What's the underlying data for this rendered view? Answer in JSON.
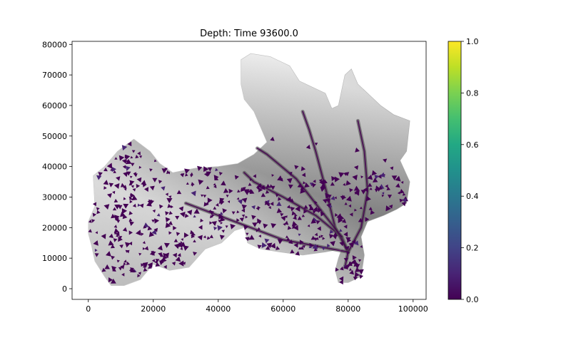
{
  "chart_data": {
    "type": "heatmap",
    "title": "Depth: Time 93600.0",
    "xlabel": "",
    "ylabel": "",
    "xlim": [
      -5000,
      104000
    ],
    "ylim": [
      -3500,
      81000
    ],
    "x_ticks": [
      0,
      20000,
      40000,
      60000,
      80000,
      100000
    ],
    "x_tick_labels": [
      "0",
      "20000",
      "40000",
      "60000",
      "80000",
      "100000"
    ],
    "y_ticks": [
      0,
      10000,
      20000,
      30000,
      40000,
      50000,
      60000,
      70000,
      80000
    ],
    "y_tick_labels": [
      "0",
      "10000",
      "20000",
      "30000",
      "40000",
      "50000",
      "60000",
      "70000",
      "80000"
    ],
    "grid": false,
    "background_layer": "greyscale elevation",
    "overlay": "depth (wet cells)",
    "colorbar": {
      "colormap": "viridis",
      "range": [
        0.0,
        1.0
      ],
      "ticks": [
        0.0,
        0.2,
        0.4,
        0.6,
        0.8,
        1.0
      ],
      "tick_labels": [
        "0.0",
        "0.2",
        "0.4",
        "0.6",
        "0.8",
        "1.0"
      ]
    },
    "domain_outline": [
      [
        0,
        22000
      ],
      [
        2000,
        27000
      ],
      [
        1500,
        37000
      ],
      [
        5000,
        40000
      ],
      [
        9000,
        45000
      ],
      [
        14000,
        49000
      ],
      [
        19000,
        45000
      ],
      [
        22000,
        41000
      ],
      [
        26000,
        38000
      ],
      [
        33000,
        39500
      ],
      [
        40000,
        40000
      ],
      [
        46000,
        41000
      ],
      [
        51000,
        44000
      ],
      [
        55000,
        48000
      ],
      [
        53000,
        53000
      ],
      [
        51000,
        58000
      ],
      [
        48000,
        62000
      ],
      [
        47000,
        67000
      ],
      [
        47000,
        75000
      ],
      [
        50000,
        77000
      ],
      [
        56000,
        76000
      ],
      [
        62000,
        73000
      ],
      [
        65000,
        68000
      ],
      [
        69000,
        66000
      ],
      [
        73000,
        64000
      ],
      [
        75000,
        59000
      ],
      [
        77000,
        60000
      ],
      [
        79000,
        70000
      ],
      [
        81000,
        72000
      ],
      [
        83000,
        67000
      ],
      [
        86000,
        64000
      ],
      [
        90000,
        60000
      ],
      [
        94000,
        57000
      ],
      [
        99000,
        55000
      ],
      [
        98000,
        45000
      ],
      [
        96000,
        42000
      ],
      [
        99000,
        35000
      ],
      [
        98000,
        28000
      ],
      [
        95000,
        26000
      ],
      [
        91000,
        24000
      ],
      [
        86000,
        22000
      ],
      [
        84000,
        17000
      ],
      [
        85000,
        11000
      ],
      [
        84000,
        4000
      ],
      [
        80000,
        2000
      ],
      [
        77000,
        2000
      ],
      [
        76000,
        6000
      ],
      [
        77000,
        10000
      ],
      [
        78000,
        13000
      ],
      [
        73000,
        12000
      ],
      [
        66000,
        11000
      ],
      [
        59000,
        12000
      ],
      [
        53000,
        13000
      ],
      [
        49000,
        15000
      ],
      [
        48000,
        20000
      ],
      [
        45000,
        19000
      ],
      [
        41000,
        15000
      ],
      [
        36000,
        13000
      ],
      [
        31000,
        7000
      ],
      [
        25000,
        6000
      ],
      [
        20000,
        8000
      ],
      [
        16000,
        3000
      ],
      [
        11000,
        1000
      ],
      [
        7000,
        1000
      ],
      [
        5000,
        4000
      ],
      [
        2000,
        9000
      ],
      [
        1000,
        14000
      ],
      [
        0,
        18000
      ]
    ],
    "channels": [
      [
        [
          79000,
          7000
        ],
        [
          80000,
          12000
        ],
        [
          78000,
          17000
        ],
        [
          70000,
          24000
        ],
        [
          60000,
          30000
        ],
        [
          51000,
          35000
        ],
        [
          48000,
          38000
        ]
      ],
      [
        [
          80000,
          12000
        ],
        [
          76000,
          20000
        ],
        [
          73000,
          33000
        ],
        [
          70000,
          45000
        ],
        [
          68000,
          52000
        ],
        [
          66000,
          58000
        ]
      ],
      [
        [
          80000,
          12000
        ],
        [
          84000,
          20000
        ],
        [
          86000,
          32000
        ],
        [
          85000,
          45000
        ],
        [
          83000,
          55000
        ]
      ],
      [
        [
          80000,
          12000
        ],
        [
          70000,
          14000
        ],
        [
          60000,
          16000
        ],
        [
          50000,
          20000
        ],
        [
          40000,
          24000
        ],
        [
          30000,
          28000
        ]
      ],
      [
        [
          78000,
          17000
        ],
        [
          64000,
          36000
        ],
        [
          55000,
          44000
        ],
        [
          52000,
          46000
        ]
      ]
    ]
  }
}
